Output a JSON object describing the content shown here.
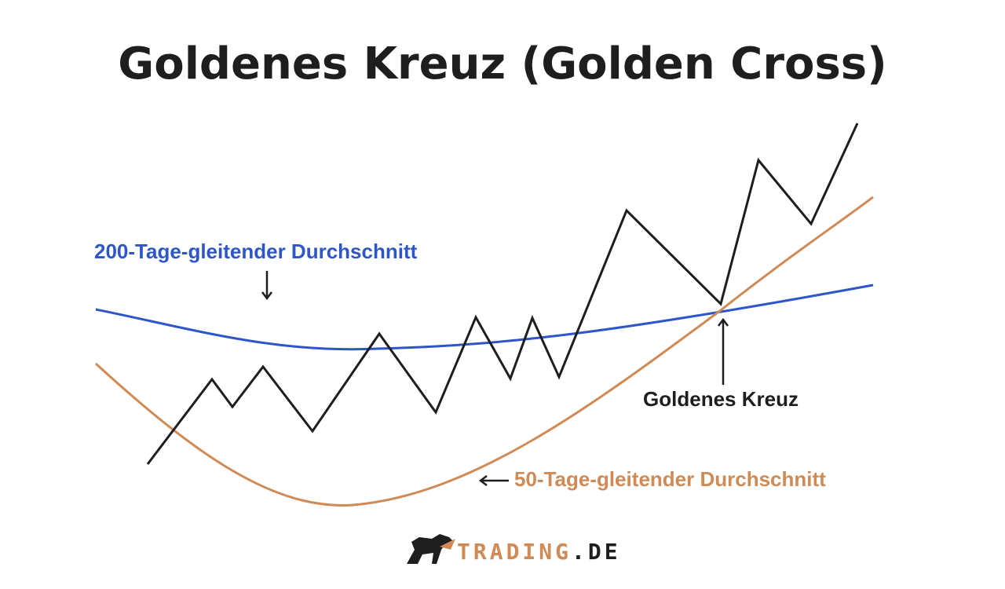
{
  "header": {
    "title": "Goldenes Kreuz (Golden Cross)"
  },
  "labels": {
    "ma200": "200-Tage-gleitender Durchschnitt",
    "ma50": "50-Tage-gleitender Durchschnitt",
    "cross": "Goldenes Kreuz"
  },
  "logo": {
    "brand": "TRADING",
    "suffix": ".DE"
  }
}
